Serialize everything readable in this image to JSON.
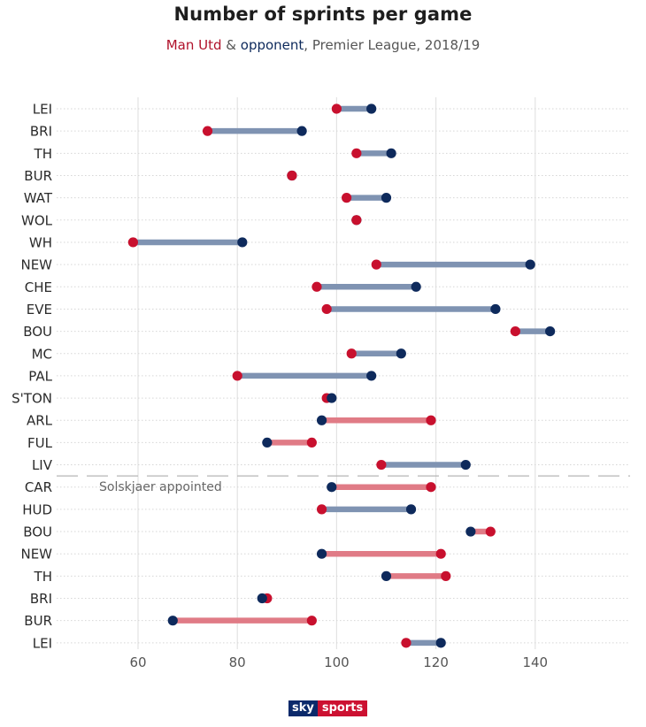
{
  "header": {
    "title": "Number of sprints per game",
    "subtitle_team": "Man Utd",
    "subtitle_amp": " & ",
    "subtitle_opponent": "opponent",
    "subtitle_rest": ", Premier League, 2018/19"
  },
  "brand": {
    "sky": "sky",
    "sports": "sports"
  },
  "colors": {
    "man_utd": "#c8102e",
    "opponent": "#0e2a5c",
    "bar_opponent_more": "#7f93b2",
    "bar_man_utd_more": "#e07b86",
    "grid": "#e3e3e3",
    "divider": "#b5b5b5"
  },
  "chart_data": {
    "type": "dumbbell",
    "title": "Number of sprints per game",
    "subtitle": "Man Utd & opponent, Premier League, 2018/19",
    "xlabel": "",
    "ylabel": "",
    "xlim": [
      45,
      158
    ],
    "x_ticks": [
      60,
      80,
      100,
      120,
      140
    ],
    "grid": true,
    "categories": [
      "LEI",
      "BRI",
      "TH",
      "BUR",
      "WAT",
      "WOL",
      "WH",
      "NEW",
      "CHE",
      "EVE",
      "BOU",
      "MC",
      "PAL",
      "S'TON",
      "ARL",
      "FUL",
      "LIV",
      "CAR",
      "HUD",
      "BOU",
      "NEW",
      "TH",
      "BRI",
      "BUR",
      "LEI"
    ],
    "series": [
      {
        "name": "Man Utd",
        "values": [
          100,
          74,
          104,
          91,
          102,
          104,
          59,
          108,
          96,
          98,
          136,
          103,
          80,
          98,
          119,
          95,
          109,
          119,
          97,
          131,
          121,
          122,
          86,
          95,
          114
        ]
      },
      {
        "name": "opponent",
        "values": [
          107,
          93,
          111,
          91,
          110,
          104,
          81,
          139,
          116,
          132,
          143,
          113,
          107,
          99,
          97,
          86,
          126,
          99,
          115,
          127,
          97,
          110,
          85,
          67,
          121
        ]
      }
    ],
    "annotations": [
      {
        "text": "Solskjaer appointed",
        "after_category_index": 16
      }
    ]
  }
}
